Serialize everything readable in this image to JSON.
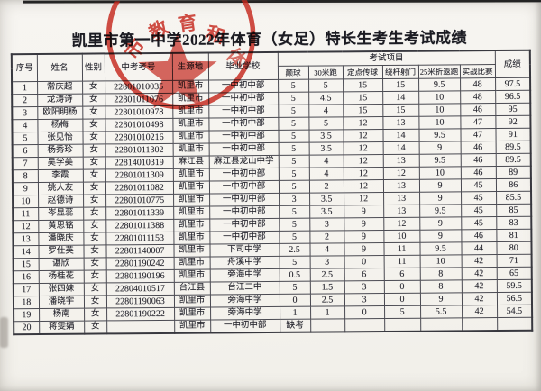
{
  "page": {
    "title": "凯里市第一中学2022年体育（女足）特长生考生考试成绩"
  },
  "stamp": {
    "color": "#c4271c",
    "chars": [
      "市",
      "教",
      "育",
      "和",
      "体"
    ]
  },
  "table": {
    "main_columns": [
      "序号",
      "姓名",
      "性别",
      "中考考号",
      "生源地",
      "毕业学校"
    ],
    "exam_group_header": "考试项目",
    "exam_columns": [
      "颠球",
      "30米跑",
      "定点传球",
      "绕杆射门",
      "25米折返跑",
      "实战比赛"
    ],
    "total_column": "成绩",
    "rows": [
      {
        "no": "1",
        "name": "常庆超",
        "gender": "女",
        "exam_no": "22801010035",
        "origin": "凯里市",
        "school": "一中初中部",
        "scores": [
          "5",
          "5",
          "15",
          "15",
          "9.5",
          "48"
        ],
        "total": "97.5"
      },
      {
        "no": "2",
        "name": "龙涛诗",
        "gender": "女",
        "exam_no": "22801011076",
        "origin": "凯里市",
        "school": "一中初中部",
        "scores": [
          "5",
          "4.5",
          "15",
          "14",
          "10",
          "48"
        ],
        "total": "96.5"
      },
      {
        "no": "3",
        "name": "欧阳明杨",
        "gender": "女",
        "exam_no": "22801010978",
        "origin": "凯里市",
        "school": "一中初中部",
        "scores": [
          "5",
          "4",
          "15",
          "15",
          "10",
          "46"
        ],
        "total": "95"
      },
      {
        "no": "4",
        "name": "杨梅",
        "gender": "女",
        "exam_no": "22801010498",
        "origin": "凯里市",
        "school": "一中初中部",
        "scores": [
          "5",
          "5",
          "12",
          "13",
          "10",
          "47"
        ],
        "total": "92"
      },
      {
        "no": "5",
        "name": "张见怡",
        "gender": "女",
        "exam_no": "22801010216",
        "origin": "凯里市",
        "school": "一中初中部",
        "scores": [
          "5",
          "3.5",
          "12",
          "14",
          "9.5",
          "47"
        ],
        "total": "91"
      },
      {
        "no": "6",
        "name": "杨秀珍",
        "gender": "女",
        "exam_no": "22801011302",
        "origin": "凯里市",
        "school": "一中初中部",
        "scores": [
          "5",
          "3.5",
          "12",
          "14",
          "9",
          "46"
        ],
        "total": "89.5"
      },
      {
        "no": "7",
        "name": "吴学美",
        "gender": "女",
        "exam_no": "22814010319",
        "origin": "麻江县",
        "school": "麻江县龙山中学",
        "scores": [
          "5",
          "4",
          "12",
          "13",
          "9.5",
          "46"
        ],
        "total": "89.5"
      },
      {
        "no": "8",
        "name": "李霞",
        "gender": "女",
        "exam_no": "22801011309",
        "origin": "凯里市",
        "school": "一中初中部",
        "scores": [
          "5",
          "4",
          "12",
          "12",
          "10",
          "46"
        ],
        "total": "89"
      },
      {
        "no": "9",
        "name": "姚人友",
        "gender": "女",
        "exam_no": "22801011082",
        "origin": "凯里市",
        "school": "一中初中部",
        "scores": [
          "5",
          "2",
          "12",
          "13",
          "9",
          "45"
        ],
        "total": "86"
      },
      {
        "no": "10",
        "name": "赵德诗",
        "gender": "女",
        "exam_no": "22801010775",
        "origin": "凯里市",
        "school": "一中初中部",
        "scores": [
          "3",
          "3.5",
          "12",
          "13",
          "9",
          "45"
        ],
        "total": "85.5"
      },
      {
        "no": "11",
        "name": "岑显蕊",
        "gender": "女",
        "exam_no": "22801011339",
        "origin": "凯里市",
        "school": "一中初中部",
        "scores": [
          "5",
          "3.5",
          "9",
          "13",
          "9.5",
          "45"
        ],
        "total": "85"
      },
      {
        "no": "12",
        "name": "黄思铭",
        "gender": "女",
        "exam_no": "22801011388",
        "origin": "凯里市",
        "school": "一中初中部",
        "scores": [
          "5",
          "3",
          "9",
          "12",
          "9",
          "45"
        ],
        "total": "83"
      },
      {
        "no": "13",
        "name": "潘晓庆",
        "gender": "女",
        "exam_no": "22801011153",
        "origin": "凯里市",
        "school": "一中初中部",
        "scores": [
          "5",
          "2",
          "9",
          "10",
          "9",
          "46"
        ],
        "total": "81"
      },
      {
        "no": "14",
        "name": "罗仕英",
        "gender": "女",
        "exam_no": "22801140007",
        "origin": "凯里市",
        "school": "下司中学",
        "scores": [
          "2.5",
          "4",
          "9",
          "11",
          "9.5",
          "44"
        ],
        "total": "80"
      },
      {
        "no": "15",
        "name": "谌欣",
        "gender": "女",
        "exam_no": "22801190242",
        "origin": "凯里市",
        "school": "舟溪中学",
        "scores": [
          "5",
          "3",
          "0",
          "11",
          "10",
          "42"
        ],
        "total": "71"
      },
      {
        "no": "16",
        "name": "杨桂花",
        "gender": "女",
        "exam_no": "22801190196",
        "origin": "凯里市",
        "school": "旁海中学",
        "scores": [
          "0.5",
          "2.5",
          "6",
          "6",
          "8",
          "42"
        ],
        "total": "65"
      },
      {
        "no": "17",
        "name": "张四妹",
        "gender": "女",
        "exam_no": "22804010517",
        "origin": "台江县",
        "school": "台江二中",
        "scores": [
          "5",
          "1.5",
          "3",
          "0",
          "8",
          "42"
        ],
        "total": "59.5"
      },
      {
        "no": "18",
        "name": "潘晓宇",
        "gender": "女",
        "exam_no": "22801190063",
        "origin": "凯里市",
        "school": "旁海中学",
        "scores": [
          "0",
          "2.5",
          "3",
          "0",
          "9",
          "42"
        ],
        "total": "56.5"
      },
      {
        "no": "19",
        "name": "杨南",
        "gender": "女",
        "exam_no": "22801190222",
        "origin": "凯里市",
        "school": "旁海中学",
        "scores": [
          "1",
          "1",
          "0",
          "5",
          "5.5",
          "42"
        ],
        "total": "54.5"
      },
      {
        "no": "20",
        "name": "蒋雯娟",
        "gender": "女",
        "exam_no": "",
        "origin": "凯里市",
        "school": "一中初中部",
        "scores": [
          "缺考",
          "",
          "",
          "",
          "",
          ""
        ],
        "total": ""
      }
    ]
  }
}
